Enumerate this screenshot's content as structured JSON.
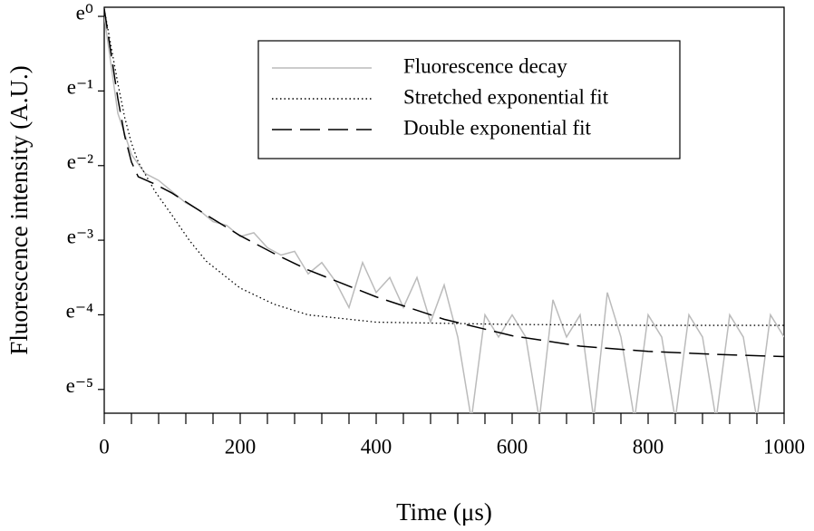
{
  "chart_data": {
    "type": "line",
    "x_label": "Time (μs)",
    "y_label": "Fluorescence intensity (A.U.)",
    "log_scale_y": true,
    "xlim": [
      0,
      1000
    ],
    "xticks": [
      0,
      200,
      400,
      600,
      800,
      1000
    ],
    "xminorticks": [
      40,
      80,
      120,
      160,
      240,
      280,
      320,
      360,
      440,
      480,
      520,
      560,
      640,
      680,
      720,
      760,
      840,
      880,
      920,
      960
    ],
    "ylim": [
      0.0049,
      1.13
    ],
    "yticks": [
      {
        "value": 1,
        "label": "e⁰"
      },
      {
        "value": 0.3679,
        "label": "e⁻¹"
      },
      {
        "value": 0.1353,
        "label": "e⁻²"
      },
      {
        "value": 0.04979,
        "label": "e⁻³"
      },
      {
        "value": 0.01832,
        "label": "e⁻⁴"
      },
      {
        "value": 0.006738,
        "label": "e⁻⁵"
      }
    ],
    "legend": "upper right",
    "series": [
      {
        "name": "Fluorescence decay",
        "color": "#bbbbbb",
        "line_style": "solid",
        "x": [
          0,
          20,
          40,
          60,
          80,
          100,
          120,
          140,
          160,
          180,
          200,
          220,
          240,
          260,
          280,
          300,
          320,
          340,
          360,
          380,
          400,
          420,
          440,
          460,
          480,
          500,
          520,
          540,
          560,
          580,
          600,
          620,
          640,
          660,
          680,
          700,
          720,
          740,
          760,
          780,
          800,
          820,
          840,
          860,
          880,
          900,
          920,
          940,
          960,
          980,
          1000
        ],
        "values": [
          1.0,
          0.273,
          0.157,
          0.122,
          0.111,
          0.0954,
          0.0821,
          0.0743,
          0.0639,
          0.0608,
          0.0523,
          0.055,
          0.045,
          0.0408,
          0.0429,
          0.0317,
          0.0369,
          0.0287,
          0.0202,
          0.0369,
          0.0247,
          0.0302,
          0.0202,
          0.0302,
          0.0166,
          0.0273,
          0.0136,
          0.0045,
          0.0183,
          0.0136,
          0.0183,
          0.0136,
          0.0045,
          0.0224,
          0.0136,
          0.0183,
          0.0045,
          0.0247,
          0.0136,
          0.0045,
          0.0183,
          0.0136,
          0.0045,
          0.0183,
          0.0136,
          0.0045,
          0.0183,
          0.0136,
          0.0045,
          0.0183,
          0.0136
        ]
      },
      {
        "name": "Stretched exponential fit",
        "color": "#000000",
        "line_style": "dotted",
        "x": [
          0,
          10,
          20,
          30,
          40,
          50,
          75,
          100,
          125,
          150,
          200,
          250,
          300,
          400,
          600,
          800,
          1000
        ],
        "values": [
          1.105,
          0.67,
          0.407,
          0.259,
          0.183,
          0.142,
          0.0954,
          0.0693,
          0.0498,
          0.0376,
          0.0262,
          0.0211,
          0.0183,
          0.0166,
          0.0161,
          0.0159,
          0.0159
        ]
      },
      {
        "name": "Double exponential fit",
        "color": "#000000",
        "line_style": "dashed",
        "x": [
          0,
          10,
          20,
          30,
          40,
          50,
          75,
          100,
          150,
          200,
          250,
          300,
          400,
          500,
          600,
          700,
          800,
          900,
          1000
        ],
        "values": [
          1.105,
          0.607,
          0.333,
          0.202,
          0.142,
          0.1165,
          0.1054,
          0.0935,
          0.0699,
          0.0529,
          0.0416,
          0.0334,
          0.0233,
          0.01725,
          0.01384,
          0.01203,
          0.01122,
          0.01078,
          0.01046
        ]
      }
    ]
  }
}
